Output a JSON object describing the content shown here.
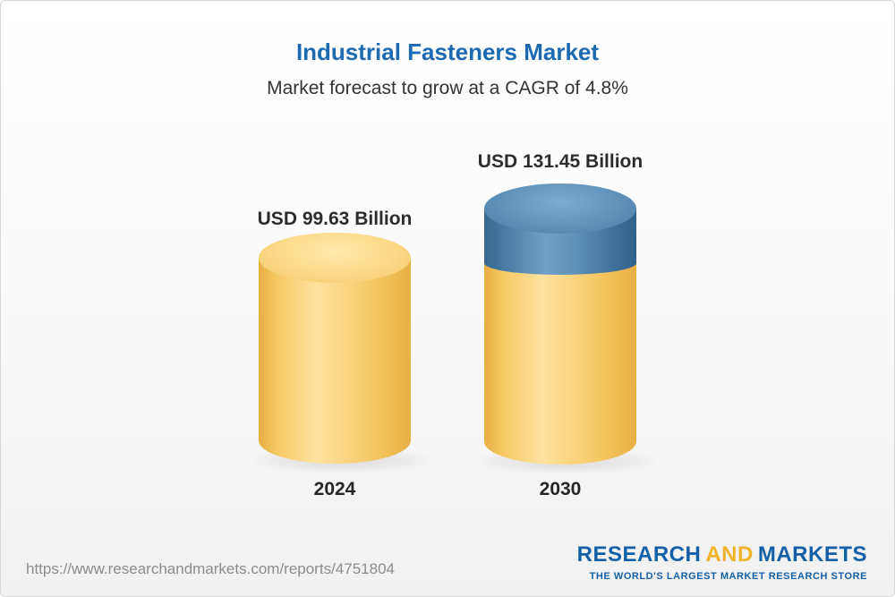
{
  "header": {
    "title": "Industrial Fasteners Market",
    "subtitle": "Market forecast to grow at a CAGR of 4.8%"
  },
  "chart_data": {
    "type": "bar",
    "categories": [
      "2024",
      "2030"
    ],
    "series": [
      {
        "name": "Industrial Fasteners Market size",
        "values": [
          99.63,
          131.45
        ]
      }
    ],
    "value_labels": [
      "USD 99.63 Billion",
      "USD 131.45 Billion"
    ],
    "unit": "USD Billion",
    "title": "Industrial Fasteners Market",
    "subtitle": "Market forecast to grow at a CAGR of 4.8%",
    "cagr": "4.8%",
    "legend_position": "none",
    "axes": "none (3D cylinder pictograph with value labels above bars)",
    "colors": {
      "bar_base": "#f6c75f",
      "bar_growth_segment": "#527fa7",
      "title_text": "#1d69b2"
    }
  },
  "bars": [
    {
      "year": "2024",
      "label": "USD 99.63 Billion"
    },
    {
      "year": "2030",
      "label": "USD 131.45 Billion"
    }
  ],
  "footer": {
    "url": "https://www.researchandmarkets.com/reports/4751804",
    "logo": {
      "research": "RESEARCH",
      "and": "AND",
      "markets": "MARKETS",
      "tagline": "THE WORLD'S LARGEST MARKET RESEARCH STORE"
    }
  }
}
